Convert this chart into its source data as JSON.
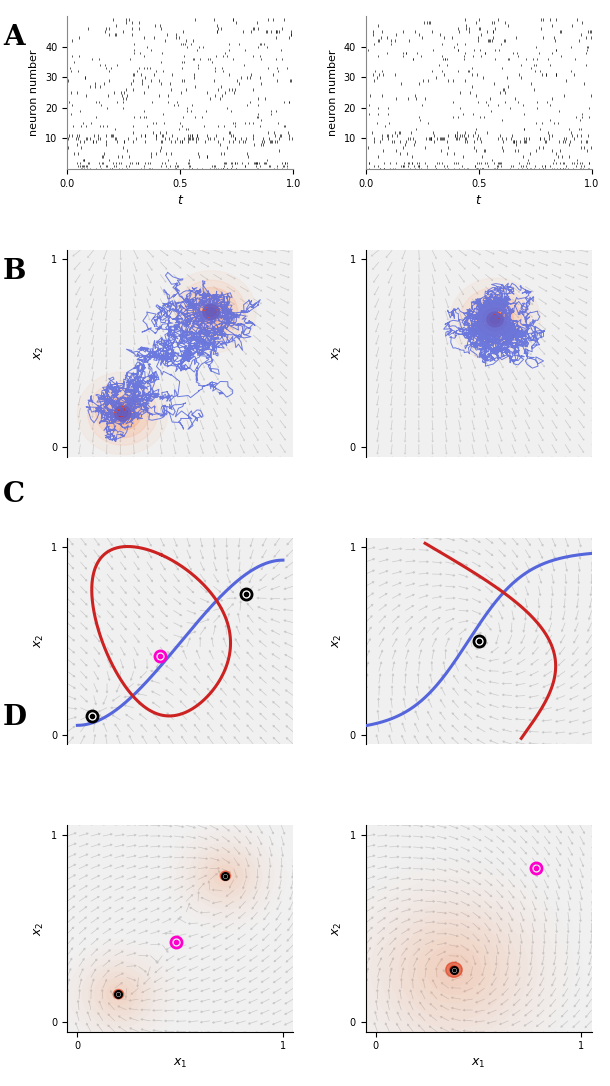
{
  "panel_labels": [
    "A",
    "B",
    "C",
    "D"
  ],
  "background_color": "#ffffff",
  "panel_bg": "#f0f0f0",
  "raster_color": "#111111",
  "stream_color": "#c0c0c0",
  "traj_blue": "#5566dd",
  "traj_red": "#cc2222",
  "density_orange": "#ff9966",
  "density_red": "#dd2200",
  "magenta": "#ff00cc",
  "black": "#000000",
  "label_fontsize": 20,
  "tick_fontsize": 7,
  "axis_label_fontsize": 9
}
